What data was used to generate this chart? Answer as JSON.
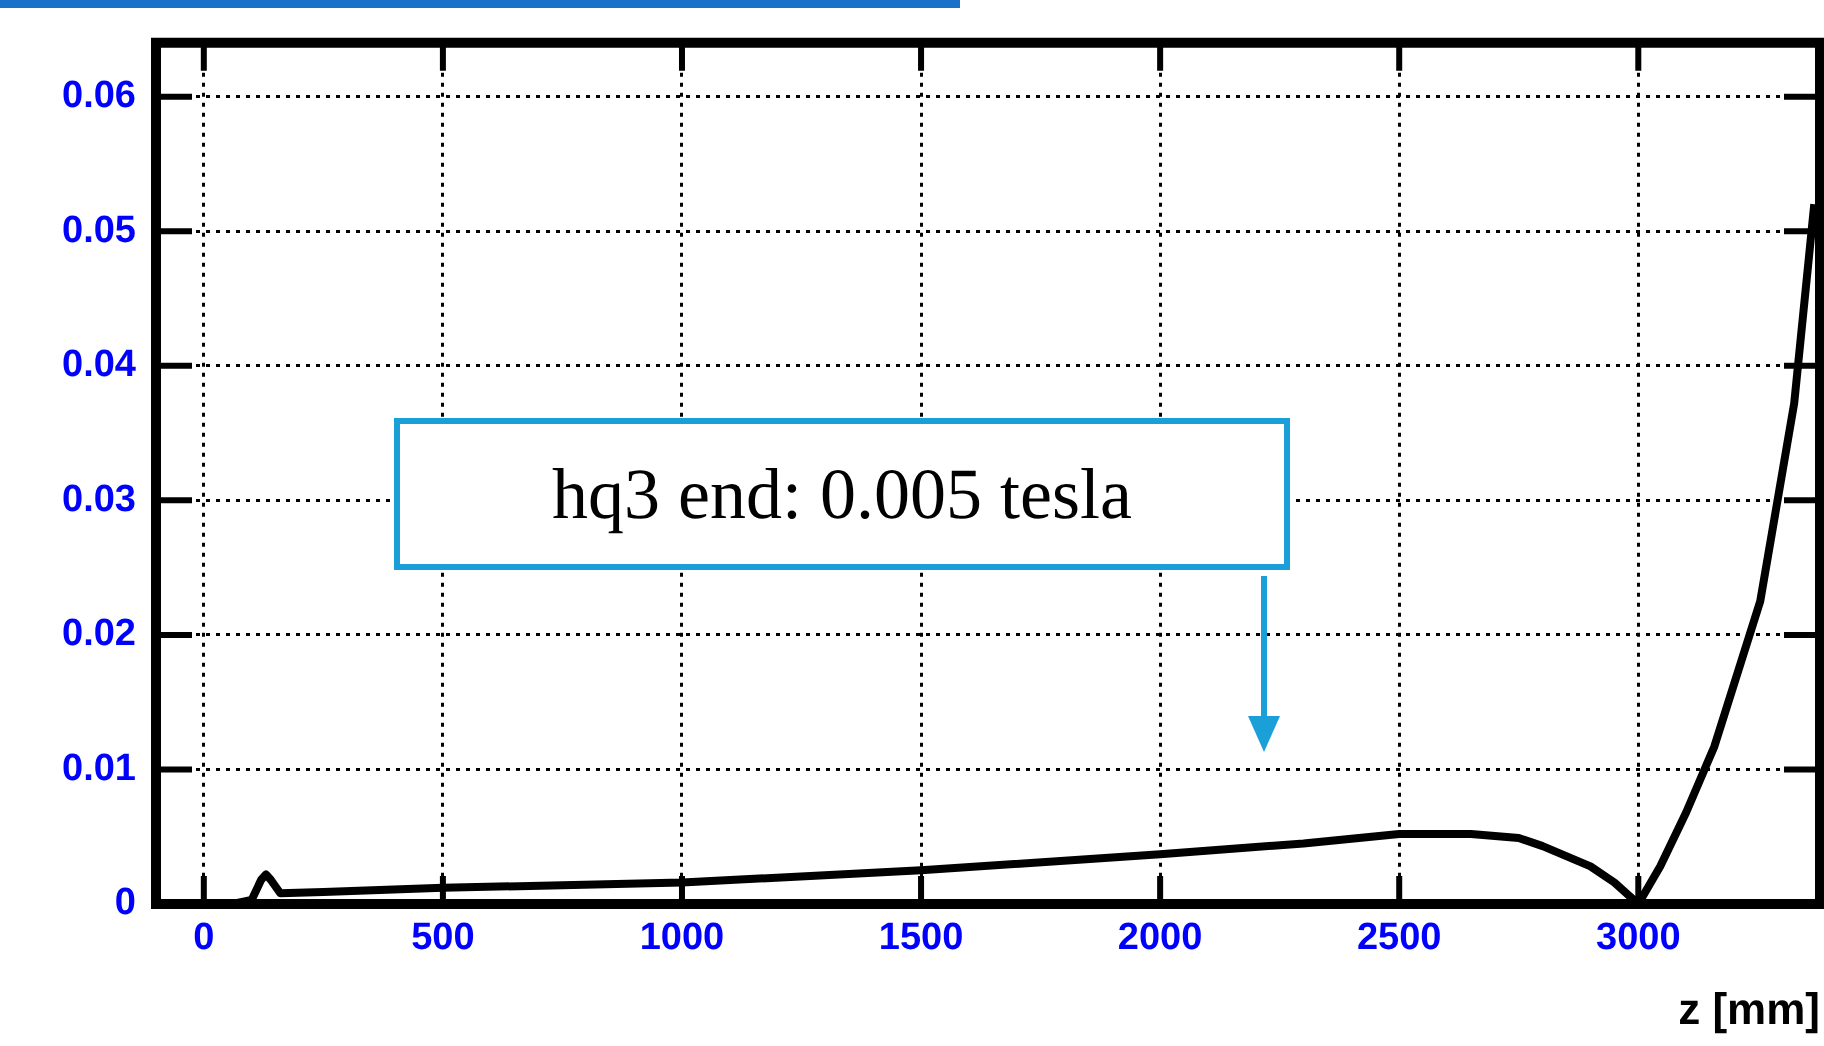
{
  "chart_data": {
    "type": "line",
    "xlabel": "z [mm]",
    "x": [
      60,
      100,
      120,
      130,
      140,
      160,
      250,
      500,
      1000,
      1500,
      2000,
      2300,
      2500,
      2650,
      2750,
      2800,
      2900,
      2950,
      3000,
      3046,
      3100,
      3159,
      3255,
      3326,
      3368
    ],
    "series": [
      {
        "color": "#000000",
        "values": [
          0,
          0.0003,
          0.0018,
          0.0022,
          0.0018,
          0.0008,
          0.0009,
          0.0012,
          0.0016,
          0.0025,
          0.0037,
          0.0045,
          0.0052,
          0.0052,
          0.0049,
          0.0043,
          0.0028,
          0.0016,
          0,
          0.0028,
          0.0068,
          0.0117,
          0.0225,
          0.0372,
          0.052
        ]
      }
    ],
    "xlim": [
      -100,
      3380
    ],
    "ylim": [
      0,
      0.064
    ],
    "xticks": [
      0,
      500,
      1000,
      1500,
      2000,
      2500,
      3000
    ],
    "yticks": [
      0,
      0.01,
      0.02,
      0.03,
      0.04,
      0.05,
      0.06
    ],
    "grid": true,
    "marker": "none",
    "line_style": "solid",
    "annotations": [
      "hq3 end: 0.005 tesla"
    ]
  }
}
